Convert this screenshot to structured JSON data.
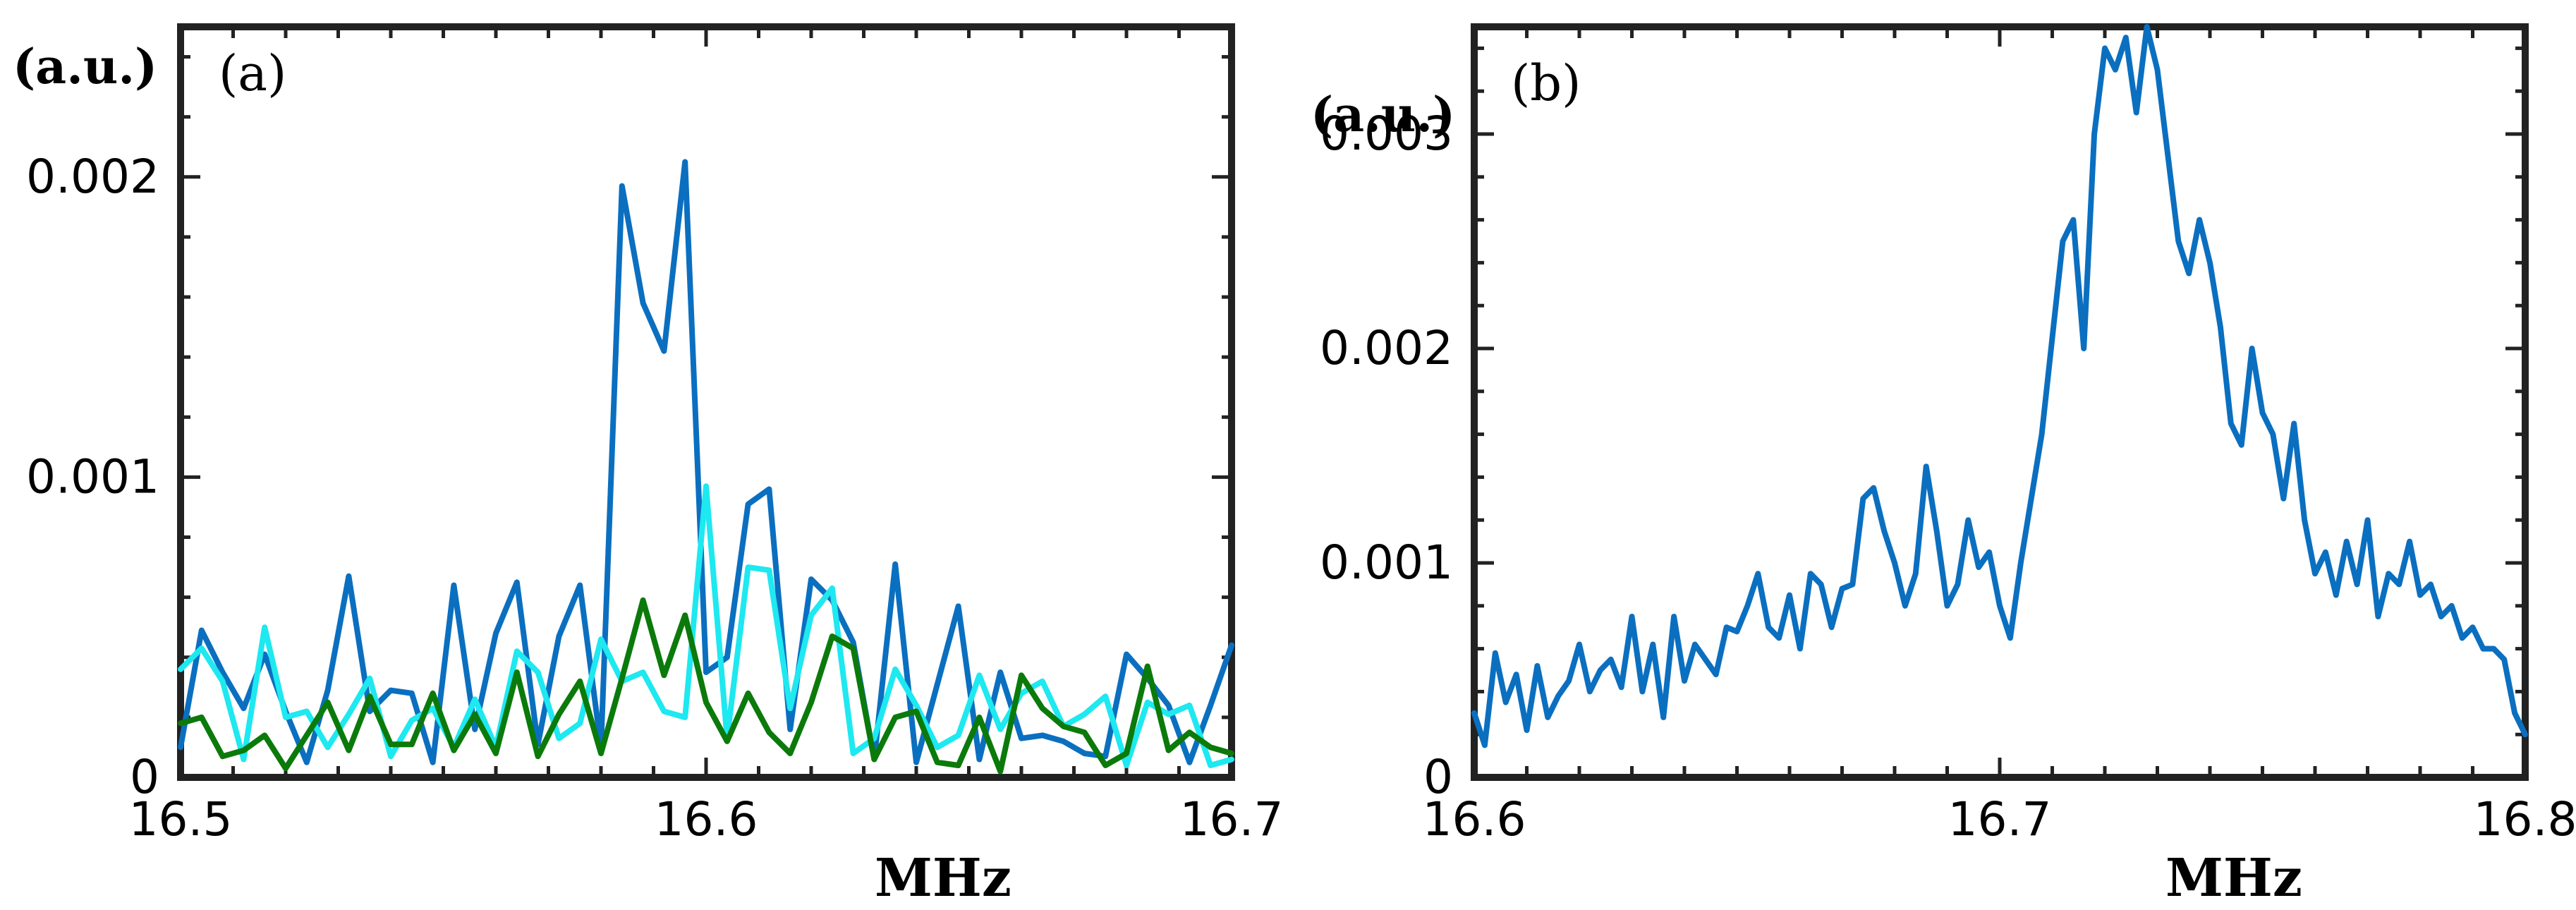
{
  "chart_data": [
    {
      "type": "line",
      "panel_label": "(a)",
      "unit_label": "(a.u.)",
      "xlabel": "MHz",
      "ylabel": "",
      "xlim": [
        16.5,
        16.7
      ],
      "ylim": [
        0,
        0.0025
      ],
      "x_ticks": [
        "16.5",
        "16.6",
        "16.7"
      ],
      "y_ticks": [
        "0",
        "0.001",
        "0.002"
      ],
      "grid": false,
      "x": [
        16.5,
        16.504,
        16.508,
        16.512,
        16.516,
        16.52,
        16.524,
        16.528,
        16.532,
        16.536,
        16.54,
        16.544,
        16.548,
        16.552,
        16.556,
        16.56,
        16.564,
        16.568,
        16.572,
        16.576,
        16.58,
        16.584,
        16.588,
        16.592,
        16.596,
        16.6,
        16.604,
        16.608,
        16.612,
        16.616,
        16.62,
        16.624,
        16.628,
        16.632,
        16.636,
        16.64,
        16.644,
        16.648,
        16.652,
        16.656,
        16.66,
        16.664,
        16.668,
        16.672,
        16.676,
        16.68,
        16.684,
        16.688,
        16.692,
        16.696,
        16.7
      ],
      "series": [
        {
          "name": "blue",
          "color": "#0b6fc0",
          "values": [
            0.0001,
            0.00049,
            0.00035,
            0.00023,
            0.00041,
            0.00022,
            5e-05,
            0.00029,
            0.00067,
            0.00022,
            0.00029,
            0.00028,
            5e-05,
            0.00064,
            0.00016,
            0.00048,
            0.00065,
            0.00011,
            0.00047,
            0.00064,
            0.0001,
            0.00197,
            0.00158,
            0.00142,
            0.00205,
            0.00035,
            0.0004,
            0.00091,
            0.00096,
            0.00016,
            0.00066,
            0.00059,
            0.00045,
            6e-05,
            0.00071,
            5e-05,
            0.00031,
            0.00057,
            6e-05,
            0.00035,
            0.00013,
            0.00014,
            0.00012,
            8e-05,
            7e-05,
            0.00041,
            0.00033,
            0.00024,
            5e-05,
            0.00024,
            0.00044
          ]
        },
        {
          "name": "cyan",
          "color": "#1ee8f0",
          "values": [
            0.00036,
            0.00043,
            0.00032,
            6e-05,
            0.0005,
            0.0002,
            0.00022,
            0.0001,
            0.00021,
            0.00033,
            7e-05,
            0.00019,
            0.00023,
            0.0001,
            0.00026,
            0.0001,
            0.00042,
            0.00035,
            0.00013,
            0.00018,
            0.00046,
            0.00032,
            0.00035,
            0.00022,
            0.0002,
            0.00097,
            0.00013,
            0.0007,
            0.00069,
            0.00023,
            0.00054,
            0.00063,
            8e-05,
            0.00013,
            0.00036,
            0.00024,
            0.0001,
            0.00014,
            0.00034,
            0.00016,
            0.00028,
            0.00032,
            0.00017,
            0.00021,
            0.00027,
            4e-05,
            0.00025,
            0.00021,
            0.00024,
            4e-05,
            6e-05
          ]
        },
        {
          "name": "green",
          "color": "#0b7a0b",
          "values": [
            0.00018,
            0.0002,
            7e-05,
            9e-05,
            0.00014,
            3e-05,
            0.00014,
            0.00025,
            9e-05,
            0.00027,
            0.00011,
            0.00011,
            0.00028,
            9e-05,
            0.00021,
            8e-05,
            0.00035,
            7e-05,
            0.00021,
            0.00032,
            8e-05,
            0.00033,
            0.00059,
            0.00034,
            0.00054,
            0.00025,
            0.00012,
            0.00028,
            0.00015,
            8e-05,
            0.00025,
            0.00047,
            0.00043,
            6e-05,
            0.0002,
            0.00022,
            5e-05,
            4e-05,
            0.0002,
            2e-05,
            0.00034,
            0.00023,
            0.00017,
            0.00015,
            4e-05,
            8e-05,
            0.00037,
            9e-05,
            0.00015,
            0.0001,
            8e-05
          ]
        }
      ]
    },
    {
      "type": "line",
      "panel_label": "(b)",
      "unit_label": "(a.u.)",
      "xlabel": "MHz",
      "ylabel": "",
      "xlim": [
        16.6,
        16.8
      ],
      "ylim": [
        0,
        0.0035
      ],
      "x_ticks": [
        "16.6",
        "16.7",
        "16.8"
      ],
      "y_ticks": [
        "0",
        "0.001",
        "0.002",
        "0.003"
      ],
      "grid": false,
      "x": [
        16.6,
        16.602,
        16.604,
        16.606,
        16.608,
        16.61,
        16.612,
        16.614,
        16.616,
        16.618,
        16.62,
        16.622,
        16.624,
        16.626,
        16.628,
        16.63,
        16.632,
        16.634,
        16.636,
        16.638,
        16.64,
        16.642,
        16.644,
        16.646,
        16.648,
        16.65,
        16.652,
        16.654,
        16.656,
        16.658,
        16.66,
        16.662,
        16.664,
        16.666,
        16.668,
        16.67,
        16.672,
        16.674,
        16.676,
        16.678,
        16.68,
        16.682,
        16.684,
        16.686,
        16.688,
        16.69,
        16.692,
        16.694,
        16.696,
        16.698,
        16.7,
        16.702,
        16.704,
        16.706,
        16.708,
        16.71,
        16.712,
        16.714,
        16.716,
        16.718,
        16.72,
        16.722,
        16.724,
        16.726,
        16.728,
        16.73,
        16.732,
        16.734,
        16.736,
        16.738,
        16.74,
        16.742,
        16.744,
        16.746,
        16.748,
        16.75,
        16.752,
        16.754,
        16.756,
        16.758,
        16.76,
        16.762,
        16.764,
        16.766,
        16.768,
        16.77,
        16.772,
        16.774,
        16.776,
        16.778,
        16.78,
        16.782,
        16.784,
        16.786,
        16.788,
        16.79,
        16.792,
        16.794,
        16.796,
        16.798,
        16.8
      ],
      "series": [
        {
          "name": "blue",
          "color": "#0b6fc0",
          "values": [
            0.0003,
            0.00015,
            0.00058,
            0.00035,
            0.00048,
            0.00022,
            0.00052,
            0.00028,
            0.00038,
            0.00045,
            0.00062,
            0.0004,
            0.0005,
            0.00055,
            0.00042,
            0.00075,
            0.0004,
            0.00062,
            0.00028,
            0.00075,
            0.00045,
            0.00062,
            0.00055,
            0.00048,
            0.0007,
            0.00068,
            0.0008,
            0.00095,
            0.0007,
            0.00065,
            0.00085,
            0.0006,
            0.00095,
            0.0009,
            0.0007,
            0.00088,
            0.0009,
            0.0013,
            0.00135,
            0.00115,
            0.001,
            0.0008,
            0.00095,
            0.00145,
            0.00115,
            0.0008,
            0.0009,
            0.0012,
            0.00098,
            0.00105,
            0.0008,
            0.00065,
            0.001,
            0.0013,
            0.0016,
            0.00205,
            0.0025,
            0.0026,
            0.002,
            0.003,
            0.0034,
            0.0033,
            0.00345,
            0.0031,
            0.0035,
            0.0033,
            0.0029,
            0.0025,
            0.00235,
            0.0026,
            0.0024,
            0.0021,
            0.00165,
            0.00155,
            0.002,
            0.0017,
            0.0016,
            0.0013,
            0.00165,
            0.0012,
            0.00095,
            0.00105,
            0.00085,
            0.0011,
            0.0009,
            0.0012,
            0.00075,
            0.00095,
            0.0009,
            0.0011,
            0.00085,
            0.0009,
            0.00075,
            0.0008,
            0.00065,
            0.0007,
            0.0006,
            0.0006,
            0.00055,
            0.0003,
            0.0002
          ]
        }
      ]
    }
  ]
}
